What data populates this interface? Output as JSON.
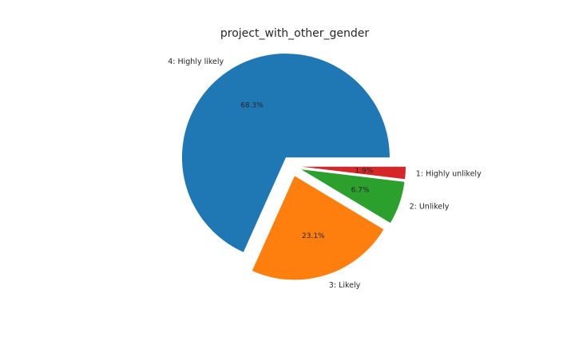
{
  "chart_data": {
    "type": "pie",
    "title": "project_with_other_gender",
    "slices": [
      {
        "label": "1: Highly unlikely",
        "pct_label": "1.9%",
        "value": 1.9,
        "color": "#d62728"
      },
      {
        "label": "2: Unlikely",
        "pct_label": "6.7%",
        "value": 6.7,
        "color": "#2ca02c"
      },
      {
        "label": "3: Likely",
        "pct_label": "23.1%",
        "value": 23.1,
        "color": "#ff7f0e"
      },
      {
        "label": "4: Highly likely",
        "pct_label": "68.3%",
        "value": 68.3,
        "color": "#1f77b4"
      }
    ],
    "start_angle_deg": 0,
    "direction": "clockwise",
    "exploded": true
  }
}
